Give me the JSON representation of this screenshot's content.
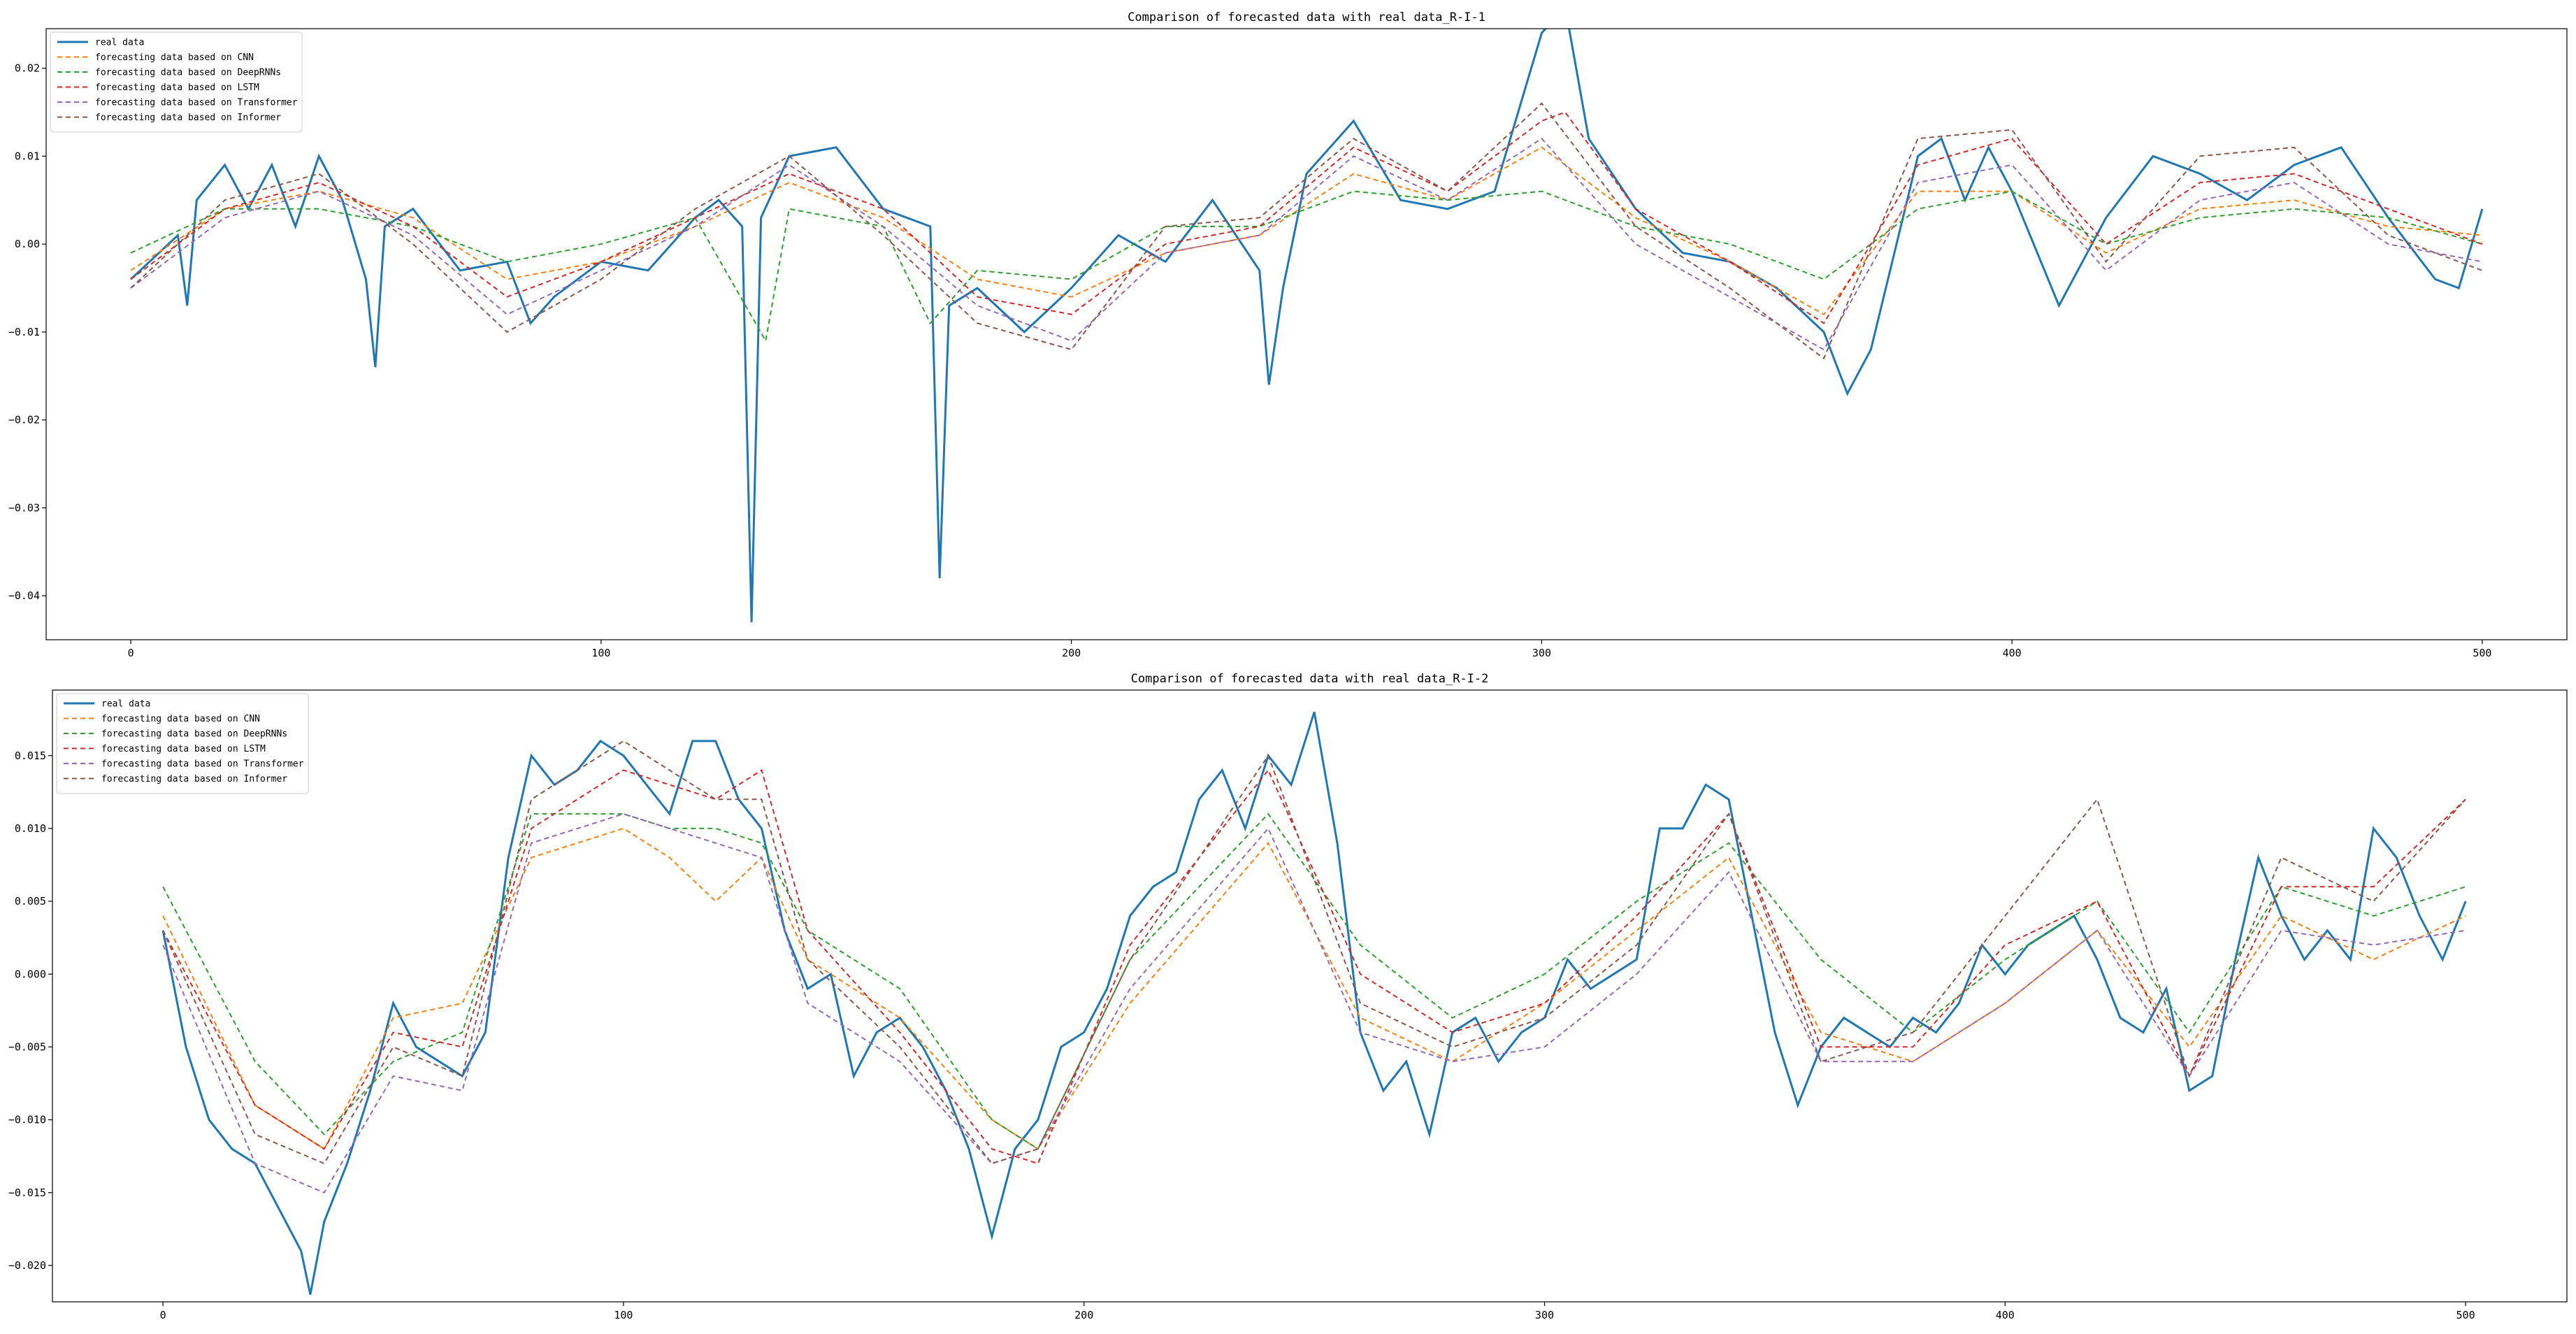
{
  "chart_data": [
    {
      "type": "line",
      "title": "Comparison of forecasted data with real data_R-I-1",
      "xlim": [
        -18,
        518
      ],
      "ylim": [
        -0.045,
        0.0245
      ],
      "xticks": [
        0,
        100,
        200,
        300,
        400,
        500
      ],
      "yticks": [
        0.02,
        0.01,
        0.0,
        -0.01,
        -0.02,
        -0.03,
        -0.04
      ],
      "yticklabels": [
        "0.02",
        "0.01",
        "0.00",
        "−0.01",
        "−0.02",
        "−0.03",
        "−0.04"
      ],
      "legend_placement": "top-left",
      "grid": false,
      "series": [
        {
          "name": "real data",
          "color": "#1f77b4",
          "style": "solid",
          "x": [
            0,
            10,
            12,
            14,
            20,
            25,
            30,
            35,
            40,
            45,
            50,
            52,
            54,
            60,
            70,
            80,
            85,
            90,
            100,
            110,
            120,
            125,
            130,
            132,
            134,
            140,
            150,
            160,
            170,
            172,
            174,
            180,
            190,
            200,
            210,
            220,
            230,
            240,
            242,
            245,
            250,
            260,
            270,
            280,
            290,
            300,
            305,
            310,
            320,
            330,
            340,
            350,
            360,
            365,
            370,
            380,
            385,
            390,
            395,
            400,
            410,
            420,
            430,
            440,
            450,
            460,
            470,
            480,
            490,
            495,
            500
          ],
          "y": [
            -0.004,
            0.001,
            -0.007,
            0.005,
            0.009,
            0.004,
            0.009,
            0.002,
            0.01,
            0.005,
            -0.004,
            -0.014,
            0.002,
            0.004,
            -0.003,
            -0.002,
            -0.009,
            -0.006,
            -0.002,
            -0.003,
            0.003,
            0.005,
            0.002,
            -0.043,
            0.003,
            0.01,
            0.011,
            0.004,
            0.002,
            -0.038,
            -0.007,
            -0.005,
            -0.01,
            -0.005,
            0.001,
            -0.002,
            0.005,
            -0.003,
            -0.016,
            -0.005,
            0.008,
            0.014,
            0.005,
            0.004,
            0.006,
            0.024,
            0.027,
            0.012,
            0.004,
            -0.001,
            -0.002,
            -0.005,
            -0.01,
            -0.017,
            -0.012,
            0.01,
            0.012,
            0.005,
            0.011,
            0.006,
            -0.007,
            0.003,
            0.01,
            0.008,
            0.005,
            0.009,
            0.011,
            0.003,
            -0.004,
            -0.005,
            0.004
          ]
        },
        {
          "name": "forecasting data based on CNN",
          "color": "#ff7f0e",
          "style": "dashed",
          "x": [
            0,
            20,
            40,
            60,
            80,
            100,
            120,
            140,
            160,
            180,
            200,
            220,
            240,
            260,
            280,
            300,
            320,
            340,
            360,
            380,
            400,
            420,
            440,
            460,
            480,
            500
          ],
          "y": [
            -0.003,
            0.004,
            0.006,
            0.003,
            -0.004,
            -0.002,
            0.002,
            0.007,
            0.003,
            -0.004,
            -0.006,
            -0.001,
            0.001,
            0.008,
            0.005,
            0.011,
            0.003,
            -0.002,
            -0.008,
            0.006,
            0.006,
            -0.001,
            0.004,
            0.005,
            0.002,
            0.001
          ]
        },
        {
          "name": "forecasting data based on DeepRNNs",
          "color": "#2ca02c",
          "style": "dashed",
          "x": [
            0,
            20,
            40,
            60,
            80,
            100,
            120,
            135,
            140,
            160,
            170,
            180,
            200,
            220,
            240,
            260,
            280,
            300,
            320,
            340,
            360,
            380,
            400,
            420,
            440,
            460,
            480,
            500
          ],
          "y": [
            -0.001,
            0.004,
            0.004,
            0.002,
            -0.002,
            0.0,
            0.003,
            -0.011,
            0.004,
            0.002,
            -0.009,
            -0.003,
            -0.004,
            0.002,
            0.002,
            0.006,
            0.005,
            0.006,
            0.002,
            0.0,
            -0.004,
            0.004,
            0.006,
            0.0,
            0.003,
            0.004,
            0.003,
            0.0
          ]
        },
        {
          "name": "forecasting data based on LSTM",
          "color": "#d62728",
          "style": "dashed",
          "x": [
            0,
            20,
            40,
            60,
            80,
            100,
            120,
            140,
            160,
            180,
            200,
            220,
            240,
            260,
            280,
            300,
            305,
            320,
            340,
            360,
            380,
            400,
            420,
            440,
            460,
            480,
            500
          ],
          "y": [
            -0.004,
            0.004,
            0.007,
            0.002,
            -0.006,
            -0.002,
            0.003,
            0.008,
            0.004,
            -0.006,
            -0.008,
            0.0,
            0.002,
            0.011,
            0.006,
            0.014,
            0.015,
            0.004,
            -0.002,
            -0.009,
            0.009,
            0.012,
            0.0,
            0.007,
            0.008,
            0.004,
            0.0
          ]
        },
        {
          "name": "forecasting data based on Transformer",
          "color": "#9467bd",
          "style": "dashed",
          "x": [
            0,
            20,
            40,
            60,
            80,
            100,
            120,
            140,
            160,
            180,
            200,
            220,
            240,
            260,
            280,
            300,
            320,
            340,
            360,
            380,
            400,
            420,
            440,
            460,
            480,
            500
          ],
          "y": [
            -0.005,
            0.003,
            0.006,
            0.001,
            -0.008,
            -0.003,
            0.002,
            0.009,
            0.002,
            -0.007,
            -0.011,
            -0.001,
            0.001,
            0.01,
            0.005,
            0.012,
            0.0,
            -0.006,
            -0.012,
            0.007,
            0.009,
            -0.003,
            0.005,
            0.007,
            0.0,
            -0.002
          ]
        },
        {
          "name": "forecasting data based on Informer",
          "color": "#8c564b",
          "style": "dashed",
          "x": [
            0,
            20,
            40,
            60,
            80,
            100,
            120,
            140,
            160,
            180,
            200,
            220,
            240,
            260,
            280,
            300,
            320,
            340,
            360,
            380,
            400,
            420,
            440,
            460,
            480,
            500
          ],
          "y": [
            -0.005,
            0.005,
            0.008,
            0.0,
            -0.01,
            -0.004,
            0.004,
            0.01,
            0.001,
            -0.009,
            -0.012,
            0.002,
            0.003,
            0.012,
            0.006,
            0.016,
            0.002,
            -0.005,
            -0.013,
            0.012,
            0.013,
            -0.002,
            0.01,
            0.011,
            0.001,
            -0.003
          ]
        }
      ]
    },
    {
      "type": "line",
      "title": "Comparison of forecasted data with real data_R-I-2",
      "xlim": [
        -24,
        522
      ],
      "ylim": [
        -0.0225,
        0.0195
      ],
      "xticks": [
        0,
        100,
        200,
        300,
        400,
        500
      ],
      "yticks": [
        0.015,
        0.01,
        0.005,
        0.0,
        -0.005,
        -0.01,
        -0.015,
        -0.02
      ],
      "yticklabels": [
        "0.015",
        "0.010",
        "0.005",
        "0.000",
        "−0.005",
        "−0.010",
        "−0.015",
        "−0.020"
      ],
      "legend_placement": "top-left",
      "grid": false,
      "series": [
        {
          "name": "real data",
          "color": "#1f77b4",
          "style": "solid",
          "x": [
            0,
            5,
            10,
            15,
            20,
            25,
            30,
            32,
            35,
            40,
            45,
            50,
            55,
            60,
            65,
            70,
            75,
            80,
            85,
            90,
            95,
            100,
            105,
            110,
            115,
            120,
            125,
            130,
            135,
            140,
            145,
            150,
            155,
            160,
            165,
            170,
            175,
            180,
            185,
            190,
            195,
            200,
            205,
            210,
            215,
            220,
            225,
            230,
            235,
            240,
            245,
            250,
            255,
            260,
            265,
            270,
            275,
            280,
            285,
            290,
            295,
            300,
            305,
            310,
            315,
            320,
            325,
            330,
            335,
            340,
            345,
            350,
            355,
            360,
            365,
            370,
            375,
            380,
            385,
            390,
            395,
            400,
            405,
            410,
            415,
            420,
            425,
            430,
            435,
            440,
            445,
            450,
            455,
            460,
            465,
            470,
            475,
            480,
            485,
            490,
            495,
            500
          ],
          "y": [
            0.003,
            -0.005,
            -0.01,
            -0.012,
            -0.013,
            -0.016,
            -0.019,
            -0.022,
            -0.017,
            -0.013,
            -0.008,
            -0.002,
            -0.005,
            -0.006,
            -0.007,
            -0.004,
            0.008,
            0.015,
            0.013,
            0.014,
            0.016,
            0.015,
            0.013,
            0.011,
            0.016,
            0.016,
            0.012,
            0.01,
            0.003,
            -0.001,
            0.0,
            -0.007,
            -0.004,
            -0.003,
            -0.005,
            -0.008,
            -0.012,
            -0.018,
            -0.012,
            -0.01,
            -0.005,
            -0.004,
            -0.001,
            0.004,
            0.006,
            0.007,
            0.012,
            0.014,
            0.01,
            0.015,
            0.013,
            0.018,
            0.009,
            -0.004,
            -0.008,
            -0.006,
            -0.011,
            -0.004,
            -0.003,
            -0.006,
            -0.004,
            -0.003,
            0.001,
            -0.001,
            0.0,
            0.001,
            0.01,
            0.01,
            0.013,
            0.012,
            0.004,
            -0.004,
            -0.009,
            -0.005,
            -0.003,
            -0.004,
            -0.005,
            -0.003,
            -0.004,
            -0.002,
            0.002,
            0.0,
            0.002,
            0.003,
            0.004,
            0.001,
            -0.003,
            -0.004,
            -0.001,
            -0.008,
            -0.007,
            0.001,
            0.008,
            0.004,
            0.001,
            0.003,
            0.001,
            0.01,
            0.008,
            0.004,
            0.001,
            0.005
          ]
        },
        {
          "name": "forecasting data based on CNN",
          "color": "#ff7f0e",
          "style": "dashed",
          "x": [
            0,
            20,
            35,
            50,
            65,
            80,
            100,
            110,
            120,
            130,
            140,
            160,
            180,
            190,
            210,
            240,
            260,
            280,
            300,
            320,
            340,
            360,
            380,
            400,
            420,
            440,
            460,
            480,
            500
          ],
          "y": [
            0.004,
            -0.009,
            -0.012,
            -0.003,
            -0.002,
            0.008,
            0.01,
            0.008,
            0.005,
            0.008,
            0.001,
            -0.003,
            -0.01,
            -0.012,
            -0.002,
            0.009,
            -0.003,
            -0.006,
            -0.002,
            0.003,
            0.008,
            -0.004,
            -0.006,
            -0.002,
            0.003,
            -0.005,
            0.004,
            0.001,
            0.004
          ]
        },
        {
          "name": "forecasting data based on DeepRNNs",
          "color": "#2ca02c",
          "style": "dashed",
          "x": [
            0,
            20,
            35,
            50,
            65,
            80,
            100,
            110,
            120,
            130,
            140,
            160,
            180,
            190,
            210,
            240,
            260,
            280,
            300,
            320,
            340,
            360,
            380,
            400,
            420,
            440,
            460,
            480,
            500
          ],
          "y": [
            0.006,
            -0.006,
            -0.011,
            -0.006,
            -0.004,
            0.011,
            0.011,
            0.01,
            0.01,
            0.009,
            0.003,
            -0.001,
            -0.01,
            -0.012,
            0.001,
            0.011,
            0.002,
            -0.003,
            0.0,
            0.005,
            0.009,
            0.001,
            -0.004,
            0.001,
            0.005,
            -0.004,
            0.006,
            0.004,
            0.006
          ]
        },
        {
          "name": "forecasting data based on LSTM",
          "color": "#d62728",
          "style": "dashed",
          "x": [
            0,
            20,
            35,
            50,
            65,
            80,
            100,
            110,
            120,
            130,
            140,
            160,
            180,
            190,
            210,
            240,
            260,
            280,
            300,
            320,
            340,
            360,
            380,
            400,
            420,
            440,
            460,
            480,
            500
          ],
          "y": [
            0.003,
            -0.009,
            -0.012,
            -0.004,
            -0.005,
            0.01,
            0.014,
            0.013,
            0.012,
            0.014,
            0.003,
            -0.004,
            -0.012,
            -0.013,
            0.002,
            0.014,
            0.0,
            -0.004,
            -0.002,
            0.004,
            0.011,
            -0.005,
            -0.005,
            0.002,
            0.005,
            -0.007,
            0.006,
            0.006,
            0.012
          ]
        },
        {
          "name": "forecasting data based on Transformer",
          "color": "#9467bd",
          "style": "dashed",
          "x": [
            0,
            20,
            35,
            50,
            65,
            80,
            100,
            110,
            120,
            130,
            140,
            160,
            180,
            190,
            210,
            240,
            260,
            280,
            300,
            320,
            340,
            360,
            380,
            400,
            420,
            440,
            460,
            480,
            500
          ],
          "y": [
            0.002,
            -0.013,
            -0.015,
            -0.007,
            -0.008,
            0.009,
            0.011,
            0.01,
            0.009,
            0.008,
            -0.002,
            -0.006,
            -0.013,
            -0.012,
            -0.001,
            0.01,
            -0.004,
            -0.006,
            -0.005,
            0.0,
            0.007,
            -0.006,
            -0.006,
            -0.002,
            0.003,
            -0.007,
            0.003,
            0.002,
            0.003
          ]
        },
        {
          "name": "forecasting data based on Informer",
          "color": "#8c564b",
          "style": "dashed",
          "x": [
            0,
            20,
            35,
            50,
            65,
            80,
            100,
            110,
            120,
            130,
            140,
            160,
            180,
            190,
            210,
            240,
            260,
            280,
            300,
            320,
            340,
            360,
            380,
            400,
            420,
            440,
            460,
            480,
            500
          ],
          "y": [
            0.003,
            -0.011,
            -0.013,
            -0.005,
            -0.007,
            0.012,
            0.016,
            0.014,
            0.012,
            0.012,
            0.001,
            -0.005,
            -0.013,
            -0.012,
            0.001,
            0.015,
            -0.002,
            -0.005,
            -0.003,
            0.002,
            0.011,
            -0.006,
            -0.004,
            0.004,
            0.012,
            -0.007,
            0.008,
            0.005,
            0.012
          ]
        }
      ]
    }
  ]
}
